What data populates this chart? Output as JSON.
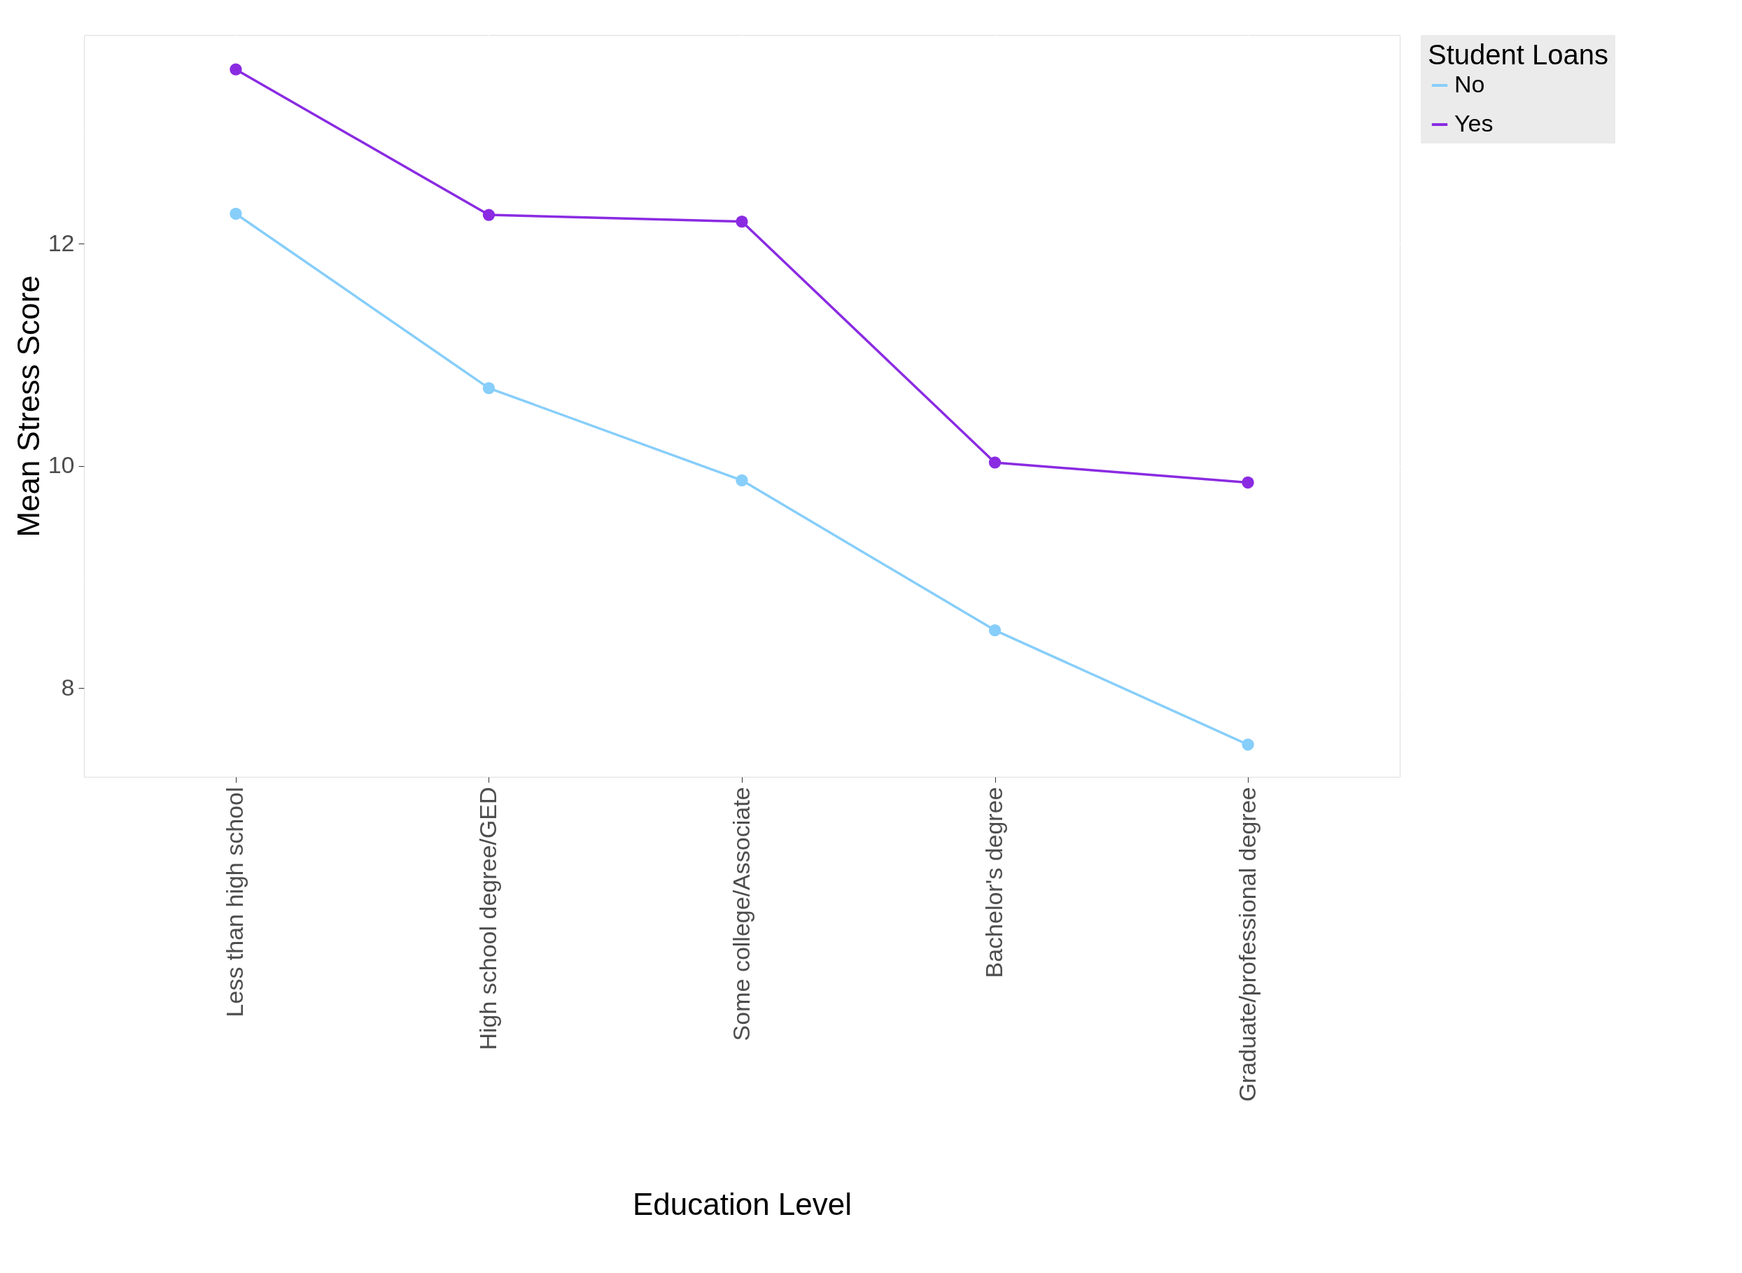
{
  "chart_data": {
    "type": "line",
    "xlabel": "Education Level",
    "ylabel": "Mean Stress Score",
    "legend_title": "Student Loans",
    "categories": [
      "Less than high school",
      "High school degree/GED",
      "Some college/Associate",
      "Bachelor's degree",
      "Graduate/professional degree"
    ],
    "series": [
      {
        "name": "No",
        "color": "#87cefa",
        "values": [
          12.27,
          10.7,
          9.87,
          8.52,
          7.49
        ]
      },
      {
        "name": "Yes",
        "color": "#8a2be2",
        "values": [
          13.57,
          12.26,
          12.2,
          10.03,
          9.85
        ]
      }
    ],
    "ylim": [
      7.2,
      13.88
    ],
    "yticks": [
      8,
      {
        "value": 9,
        "label": null
      },
      10,
      {
        "value": 11,
        "label": null
      },
      12,
      {
        "value": 13,
        "label": null
      }
    ],
    "grid": true,
    "legend": "right",
    "marker": "circle",
    "line_style": "solid"
  }
}
